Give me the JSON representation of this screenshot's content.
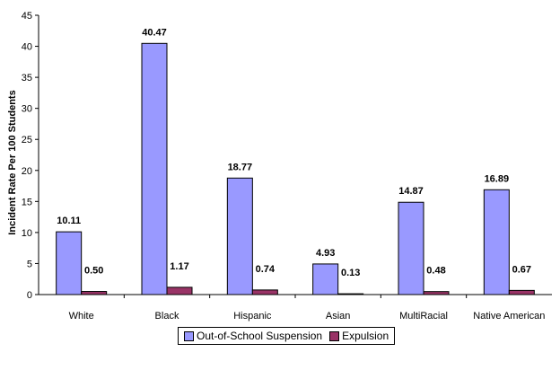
{
  "chart_data": {
    "type": "bar",
    "title": "",
    "xlabel": "",
    "ylabel": "Incident Rate Per 100 Students",
    "ylim": [
      0,
      45
    ],
    "ytick_step": 5,
    "grid": false,
    "legend_position": "bottom",
    "categories": [
      "White",
      "Black",
      "Hispanic",
      "Asian",
      "MultiRacial",
      "Native American"
    ],
    "series": [
      {
        "name": "Out-of-School Suspension",
        "color": "#9999ff",
        "values": [
          10.11,
          40.47,
          18.77,
          4.93,
          14.87,
          16.89
        ],
        "labels": [
          "10.11",
          "40.47",
          "18.77",
          "4.93",
          "14.87",
          "16.89"
        ]
      },
      {
        "name": "Expulsion",
        "color": "#993366",
        "values": [
          0.5,
          1.17,
          0.74,
          0.13,
          0.48,
          0.67
        ],
        "labels": [
          "0.50",
          "1.17",
          "0.74",
          "0.13",
          "0.48",
          "0.67"
        ]
      }
    ]
  }
}
